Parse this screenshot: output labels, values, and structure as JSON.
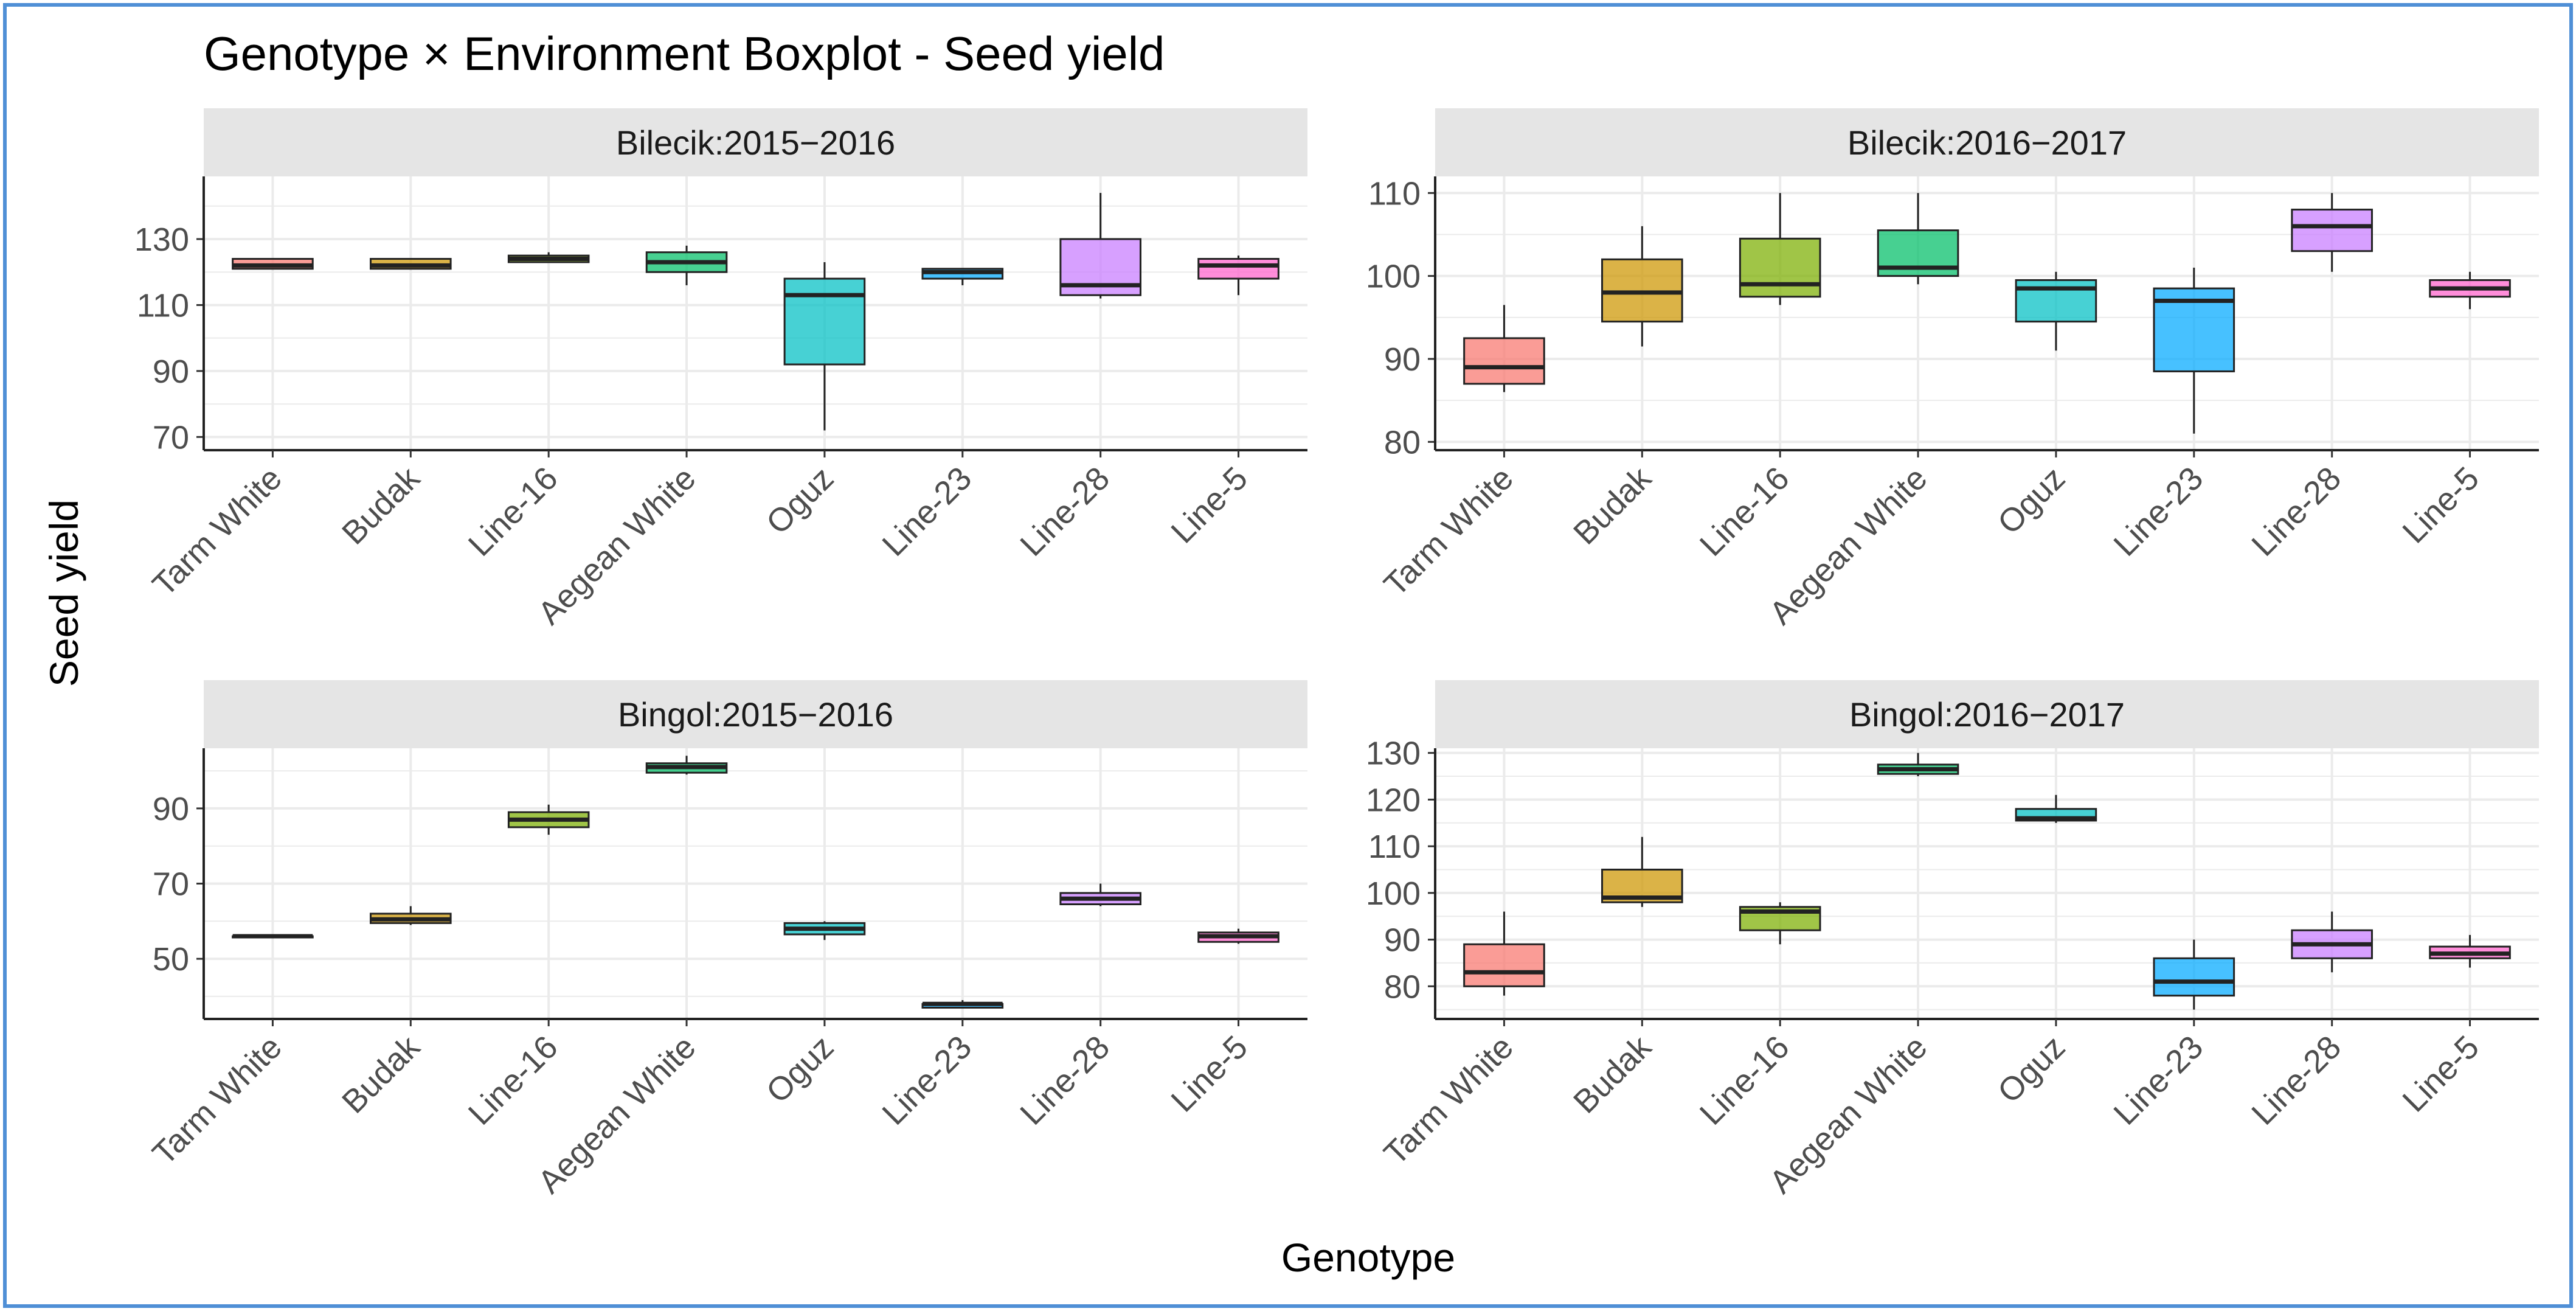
{
  "figure": {
    "title": "Genotype × Environment Boxplot - Seed yield",
    "xlabel": "Genotype",
    "ylabel": "Seed yield"
  },
  "chart_data": [
    {
      "type": "boxplot",
      "panel": "Bilecik:2015−2016",
      "categories": [
        "Tarm White",
        "Budak",
        "Line-16",
        "Aegean White",
        "Oguz",
        "Line-23",
        "Line-28",
        "Line-5"
      ],
      "ylim": [
        66,
        149
      ],
      "yticks": [
        70,
        90,
        110,
        130
      ],
      "boxes": [
        {
          "min": 121,
          "q1": 121,
          "median": 122,
          "q3": 124,
          "max": 124
        },
        {
          "min": 121,
          "q1": 121,
          "median": 122,
          "q3": 124,
          "max": 124
        },
        {
          "min": 123,
          "q1": 123,
          "median": 124,
          "q3": 125,
          "max": 126
        },
        {
          "min": 116,
          "q1": 120,
          "median": 123,
          "q3": 126,
          "max": 128
        },
        {
          "min": 72,
          "q1": 92,
          "median": 113,
          "q3": 118,
          "max": 123
        },
        {
          "min": 116,
          "q1": 118,
          "median": 120,
          "q3": 121,
          "max": 121
        },
        {
          "min": 112,
          "q1": 113,
          "median": 116,
          "q3": 130,
          "max": 144
        },
        {
          "min": 113,
          "q1": 118,
          "median": 122,
          "q3": 124,
          "max": 125
        }
      ]
    },
    {
      "type": "boxplot",
      "panel": "Bilecik:2016−2017",
      "categories": [
        "Tarm White",
        "Budak",
        "Line-16",
        "Aegean White",
        "Oguz",
        "Line-23",
        "Line-28",
        "Line-5"
      ],
      "ylim": [
        79,
        112
      ],
      "yticks": [
        80,
        90,
        100,
        110
      ],
      "boxes": [
        {
          "min": 86,
          "q1": 87,
          "median": 89,
          "q3": 92.5,
          "max": 96.5
        },
        {
          "min": 91.5,
          "q1": 94.5,
          "median": 98,
          "q3": 102,
          "max": 106
        },
        {
          "min": 96.5,
          "q1": 97.5,
          "median": 99,
          "q3": 104.5,
          "max": 110
        },
        {
          "min": 99,
          "q1": 100,
          "median": 101,
          "q3": 105.5,
          "max": 110
        },
        {
          "min": 91,
          "q1": 94.5,
          "median": 98.5,
          "q3": 99.5,
          "max": 100.5
        },
        {
          "min": 81,
          "q1": 88.5,
          "median": 97,
          "q3": 98.5,
          "max": 101
        },
        {
          "min": 100.5,
          "q1": 103,
          "median": 106,
          "q3": 108,
          "max": 110
        },
        {
          "min": 96,
          "q1": 97.5,
          "median": 98.5,
          "q3": 99.5,
          "max": 100.5
        }
      ]
    },
    {
      "type": "boxplot",
      "panel": "Bingol:2015−2016",
      "categories": [
        "Tarm White",
        "Budak",
        "Line-16",
        "Aegean White",
        "Oguz",
        "Line-23",
        "Line-28",
        "Line-5"
      ],
      "ylim": [
        34,
        106
      ],
      "yticks": [
        50,
        70,
        90
      ],
      "boxes": [
        {
          "min": 56,
          "q1": 56,
          "median": 56,
          "q3": 56,
          "max": 56
        },
        {
          "min": 59,
          "q1": 59.5,
          "median": 60.5,
          "q3": 62,
          "max": 64
        },
        {
          "min": 83,
          "q1": 85,
          "median": 87,
          "q3": 89,
          "max": 91
        },
        {
          "min": 99,
          "q1": 99.5,
          "median": 101,
          "q3": 102,
          "max": 104
        },
        {
          "min": 55,
          "q1": 56.5,
          "median": 58,
          "q3": 59.5,
          "max": 60
        },
        {
          "min": 37,
          "q1": 37,
          "median": 38,
          "q3": 38,
          "max": 39
        },
        {
          "min": 64,
          "q1": 64.5,
          "median": 66,
          "q3": 67.5,
          "max": 70
        },
        {
          "min": 54,
          "q1": 54.5,
          "median": 56,
          "q3": 57,
          "max": 58
        }
      ]
    },
    {
      "type": "boxplot",
      "panel": "Bingol:2016−2017",
      "categories": [
        "Tarm White",
        "Budak",
        "Line-16",
        "Aegean White",
        "Oguz",
        "Line-23",
        "Line-28",
        "Line-5"
      ],
      "ylim": [
        73,
        131
      ],
      "yticks": [
        80,
        90,
        100,
        110,
        120,
        130
      ],
      "boxes": [
        {
          "min": 78,
          "q1": 80,
          "median": 83,
          "q3": 89,
          "max": 96
        },
        {
          "min": 97,
          "q1": 98,
          "median": 99,
          "q3": 105,
          "max": 112
        },
        {
          "min": 89,
          "q1": 92,
          "median": 96,
          "q3": 97,
          "max": 98
        },
        {
          "min": 125,
          "q1": 125.5,
          "median": 126.5,
          "q3": 127.5,
          "max": 130
        },
        {
          "min": 115,
          "q1": 115.5,
          "median": 116,
          "q3": 118,
          "max": 121
        },
        {
          "min": 75,
          "q1": 78,
          "median": 81,
          "q3": 86,
          "max": 90
        },
        {
          "min": 83,
          "q1": 86,
          "median": 89,
          "q3": 92,
          "max": 96
        },
        {
          "min": 84,
          "q1": 86,
          "median": 87,
          "q3": 88.5,
          "max": 91
        }
      ]
    }
  ],
  "colors": {
    "Tarm White": "#F8766D",
    "Budak": "#CD9600",
    "Line-16": "#7CAE00",
    "Aegean White": "#00BE67",
    "Oguz": "#00BFC4",
    "Line-23": "#00A9FF",
    "Line-28": "#C77CFF",
    "Line-5": "#FF61CC",
    "strip": "#E5E5E5",
    "grid": "#EBEBEB",
    "border": "#4F8FD6",
    "text": "#1A1A1A",
    "tick": "#4D4D4D"
  }
}
